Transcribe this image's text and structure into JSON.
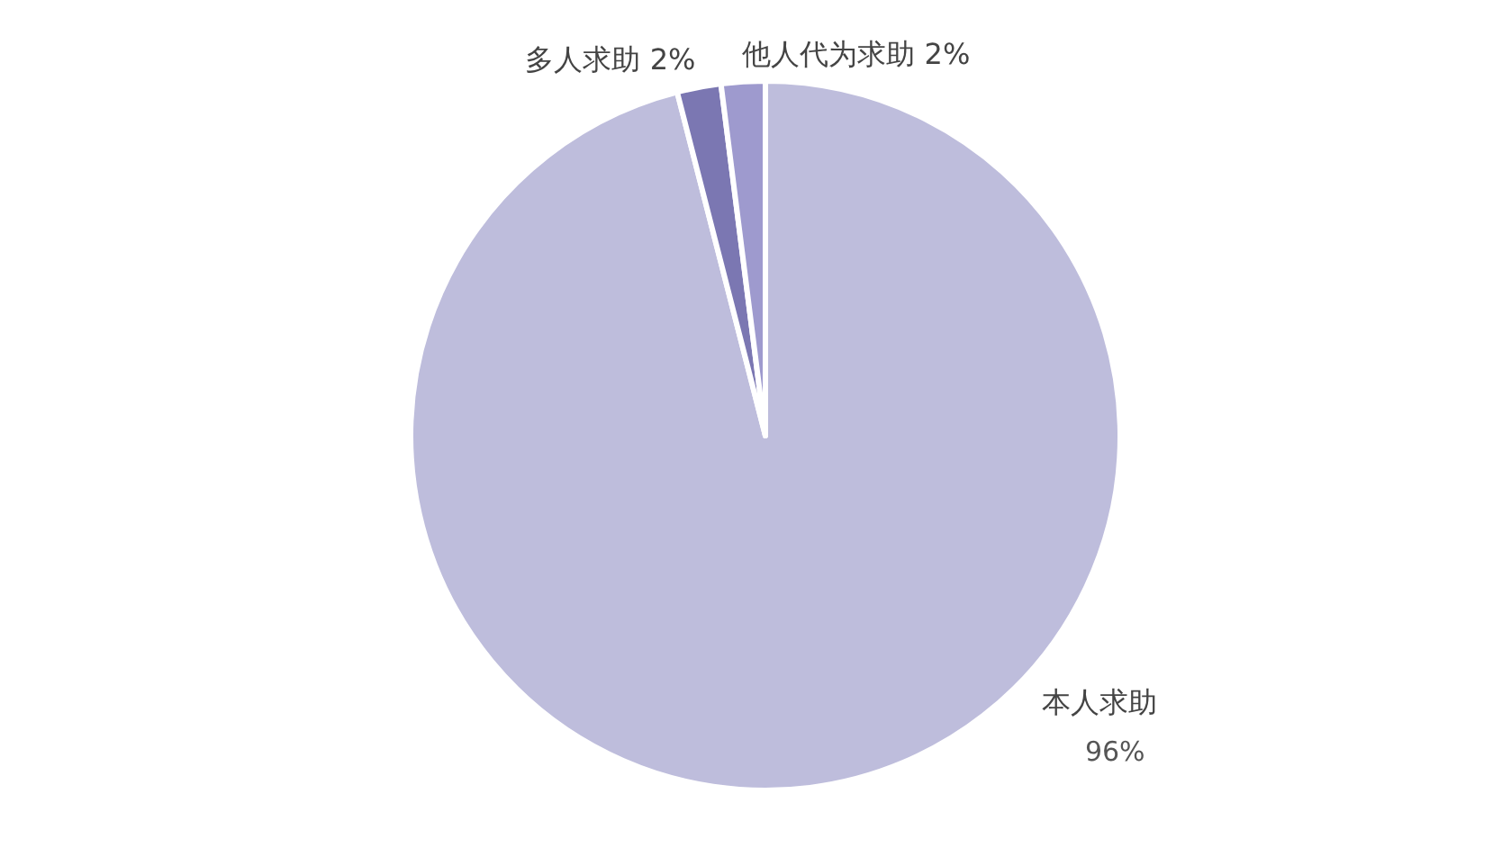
{
  "chart_data": {
    "type": "pie",
    "categories": [
      "本人求助",
      "多人求助",
      "他人代为求助"
    ],
    "values": [
      96,
      2,
      2
    ],
    "value_labels": [
      "96%",
      "2%",
      "2%"
    ],
    "colors": [
      "#bebddc",
      "#7b77b2",
      "#9e9ace"
    ]
  }
}
